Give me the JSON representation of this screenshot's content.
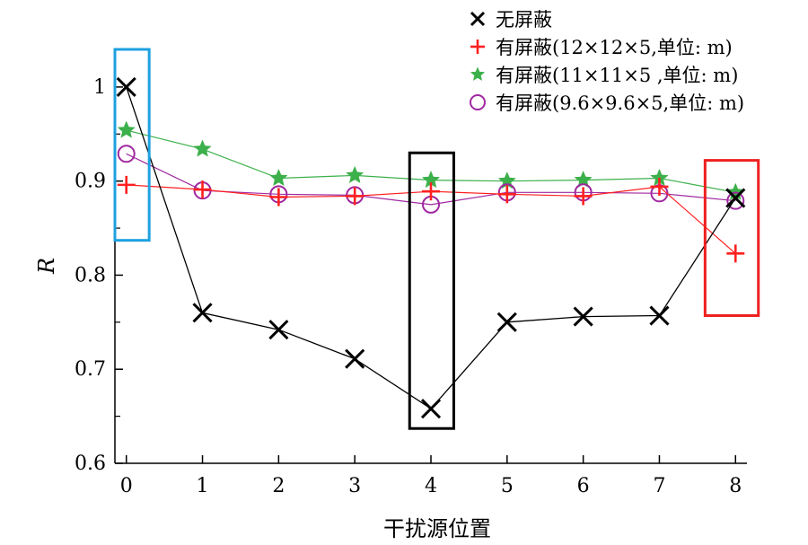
{
  "chart_data": {
    "type": "line",
    "x": [
      0,
      1,
      2,
      3,
      4,
      5,
      6,
      7,
      8
    ],
    "xlabel": "干扰源位置",
    "ylabel": "R",
    "xlim": [
      -0.15,
      8.15
    ],
    "ylim": [
      0.6,
      1.04
    ],
    "xticks": [
      0,
      1,
      2,
      3,
      4,
      5,
      6,
      7,
      8
    ],
    "yticks": [
      0.6,
      0.7,
      0.8,
      0.9,
      1.0
    ],
    "ytick_labels": [
      "0.6",
      "0.7",
      "0.8",
      "0.9",
      "1"
    ],
    "grid": false,
    "legend_position": "top-right",
    "series": [
      {
        "name": "无屏蔽",
        "marker": "x",
        "color": "#000000",
        "values": [
          1.0,
          0.76,
          0.742,
          0.711,
          0.658,
          0.75,
          0.756,
          0.757,
          0.882
        ]
      },
      {
        "name": "有屏蔽(12×12×5,单位: m)",
        "marker": "plus",
        "color": "#ff2020",
        "values": [
          0.896,
          0.891,
          0.883,
          0.884,
          0.889,
          0.886,
          0.884,
          0.894,
          0.823
        ]
      },
      {
        "name": "有屏蔽(11×11×5 ,单位: m)",
        "marker": "star",
        "color": "#3cb04a",
        "values": [
          0.954,
          0.934,
          0.903,
          0.906,
          0.901,
          0.9,
          0.901,
          0.903,
          0.888
        ]
      },
      {
        "name": "有屏蔽(9.6×9.6×5,单位: m)",
        "marker": "circle",
        "color": "#a028a0",
        "values": [
          0.929,
          0.89,
          0.886,
          0.885,
          0.875,
          0.888,
          0.888,
          0.887,
          0.879
        ]
      }
    ],
    "highlight_boxes": [
      {
        "color": "#1ea0e0",
        "x_range": [
          -0.15,
          0.3
        ],
        "y_range": [
          0.837,
          1.04
        ]
      },
      {
        "color": "#000000",
        "x_range": [
          3.72,
          4.3
        ],
        "y_range": [
          0.637,
          0.93
        ]
      },
      {
        "color": "#ee2020",
        "x_range": [
          7.6,
          8.3
        ],
        "y_range": [
          0.757,
          0.922
        ]
      }
    ]
  }
}
